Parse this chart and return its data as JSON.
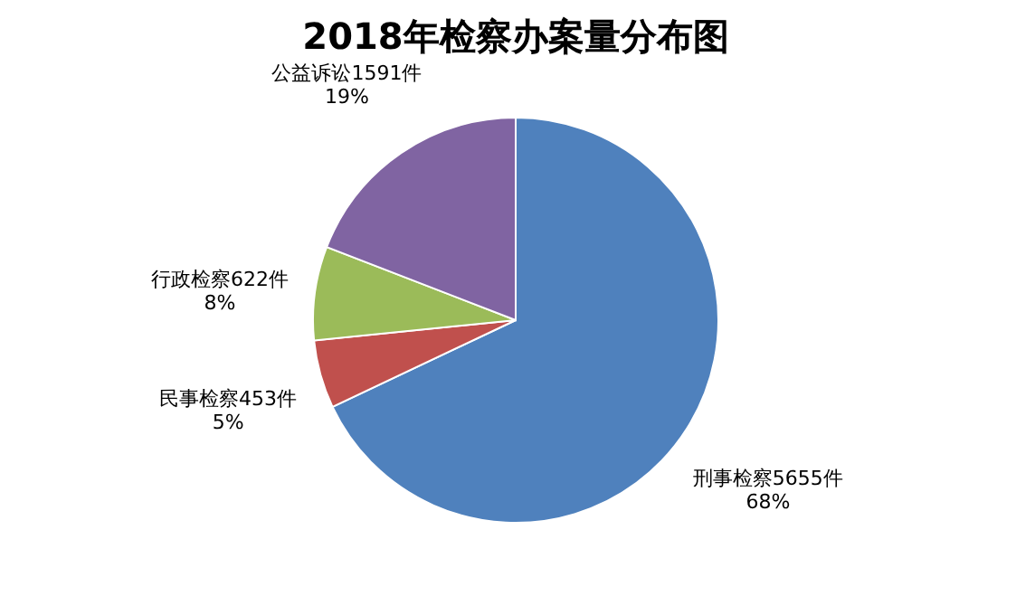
{
  "chart_data": {
    "type": "pie",
    "title": "2018年检察办案量分布图",
    "categories": [
      "刑事检察",
      "民事检察",
      "行政检察",
      "公益诉讼"
    ],
    "values": [
      5655,
      453,
      622,
      1591
    ],
    "value_labels": [
      "5655件\n68%",
      "453件\n5%",
      "622件\n8%",
      "1591件\n19%"
    ],
    "colors": [
      "#4f81bd",
      "#c0504d",
      "#9bbb59",
      "#8064a2"
    ],
    "legend": false
  }
}
